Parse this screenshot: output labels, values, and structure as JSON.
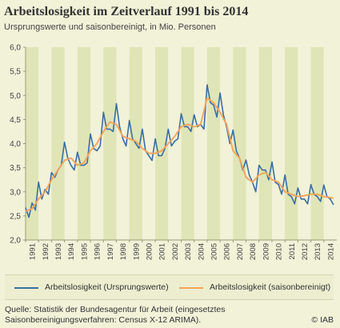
{
  "title": "Arbeitslosigkeit im Zeitverlauf 1991 bis 2014",
  "subtitle": "Ursprungswerte und saisonbereinigt, in Mio. Personen",
  "source_lines": [
    "Quelle: Statistik der Bundesagentur für Arbeit (eingesetztes",
    "Saisonbereinigungsverfahren: Census X-12 ARIMA)."
  ],
  "copyright": "© IAB",
  "colors": {
    "background": "#f1f2d8",
    "band_light": "#f1f2d8",
    "band_dark": "#dfe5b6",
    "raw_series": "#3a6ea5",
    "seasonal_series": "#f5a25a"
  },
  "chart_data": {
    "type": "line",
    "ylim": [
      2.0,
      6.0
    ],
    "yticks": [
      "2,0",
      "2,5",
      "3,0",
      "3,5",
      "4,0",
      "4,5",
      "5,0",
      "5,5",
      "6,0"
    ],
    "xlim": [
      1991.0,
      2014.75
    ],
    "xticks": [
      "1991",
      "1992",
      "1993",
      "1994",
      "1995",
      "1996",
      "1997",
      "1998",
      "1999",
      "2000",
      "2001",
      "2002",
      "2003",
      "2004",
      "2005",
      "2006",
      "2007",
      "2008",
      "2009",
      "2010",
      "2011",
      "2012",
      "2013",
      "2014"
    ],
    "grid": "alternating vertical year bands",
    "legend_position": "bottom",
    "series": [
      {
        "name": "Arbeitslosigkeit (Ursprungswerte)",
        "color": "#3a6ea5",
        "data": [
          [
            1991.0,
            2.67
          ],
          [
            1991.25,
            2.47
          ],
          [
            1991.5,
            2.77
          ],
          [
            1991.75,
            2.62
          ],
          [
            1992.0,
            3.2
          ],
          [
            1992.25,
            2.85
          ],
          [
            1992.5,
            3.05
          ],
          [
            1992.75,
            2.95
          ],
          [
            1993.0,
            3.4
          ],
          [
            1993.25,
            3.3
          ],
          [
            1993.5,
            3.45
          ],
          [
            1993.75,
            3.55
          ],
          [
            1994.0,
            4.03
          ],
          [
            1994.25,
            3.7
          ],
          [
            1994.5,
            3.55
          ],
          [
            1994.75,
            3.45
          ],
          [
            1995.0,
            3.82
          ],
          [
            1995.25,
            3.55
          ],
          [
            1995.5,
            3.55
          ],
          [
            1995.75,
            3.6
          ],
          [
            1996.0,
            4.2
          ],
          [
            1996.25,
            3.9
          ],
          [
            1996.5,
            3.85
          ],
          [
            1996.75,
            3.95
          ],
          [
            1997.0,
            4.65
          ],
          [
            1997.25,
            4.3
          ],
          [
            1997.5,
            4.3
          ],
          [
            1997.75,
            4.25
          ],
          [
            1998.0,
            4.83
          ],
          [
            1998.25,
            4.35
          ],
          [
            1998.5,
            4.1
          ],
          [
            1998.75,
            3.95
          ],
          [
            1999.0,
            4.48
          ],
          [
            1999.25,
            4.1
          ],
          [
            1999.5,
            4.0
          ],
          [
            1999.75,
            3.9
          ],
          [
            2000.0,
            4.3
          ],
          [
            2000.25,
            3.85
          ],
          [
            2000.5,
            3.75
          ],
          [
            2000.75,
            3.65
          ],
          [
            2001.0,
            4.1
          ],
          [
            2001.25,
            3.75
          ],
          [
            2001.5,
            3.75
          ],
          [
            2001.75,
            3.9
          ],
          [
            2002.0,
            4.3
          ],
          [
            2002.25,
            3.95
          ],
          [
            2002.5,
            4.05
          ],
          [
            2002.75,
            4.1
          ],
          [
            2003.0,
            4.62
          ],
          [
            2003.25,
            4.35
          ],
          [
            2003.5,
            4.35
          ],
          [
            2003.75,
            4.25
          ],
          [
            2004.0,
            4.6
          ],
          [
            2004.25,
            4.35
          ],
          [
            2004.5,
            4.4
          ],
          [
            2004.75,
            4.3
          ],
          [
            2005.0,
            5.22
          ],
          [
            2005.25,
            4.85
          ],
          [
            2005.5,
            4.8
          ],
          [
            2005.75,
            4.55
          ],
          [
            2006.0,
            5.05
          ],
          [
            2006.25,
            4.6
          ],
          [
            2006.5,
            4.35
          ],
          [
            2006.75,
            4.0
          ],
          [
            2007.0,
            4.28
          ],
          [
            2007.25,
            3.85
          ],
          [
            2007.5,
            3.7
          ],
          [
            2007.75,
            3.45
          ],
          [
            2008.0,
            3.66
          ],
          [
            2008.25,
            3.35
          ],
          [
            2008.5,
            3.2
          ],
          [
            2008.75,
            3.0
          ],
          [
            2009.0,
            3.55
          ],
          [
            2009.25,
            3.45
          ],
          [
            2009.5,
            3.45
          ],
          [
            2009.75,
            3.25
          ],
          [
            2010.0,
            3.62
          ],
          [
            2010.25,
            3.2
          ],
          [
            2010.5,
            3.15
          ],
          [
            2010.75,
            2.95
          ],
          [
            2011.0,
            3.35
          ],
          [
            2011.25,
            2.95
          ],
          [
            2011.5,
            2.9
          ],
          [
            2011.75,
            2.75
          ],
          [
            2012.0,
            3.08
          ],
          [
            2012.25,
            2.85
          ],
          [
            2012.5,
            2.85
          ],
          [
            2012.75,
            2.75
          ],
          [
            2013.0,
            3.15
          ],
          [
            2013.25,
            2.95
          ],
          [
            2013.5,
            2.9
          ],
          [
            2013.75,
            2.8
          ],
          [
            2014.0,
            3.14
          ],
          [
            2014.25,
            2.9
          ],
          [
            2014.5,
            2.85
          ],
          [
            2014.75,
            2.73
          ]
        ]
      },
      {
        "name": "Arbeitslosigkeit (saisonbereinigt)",
        "color": "#f5a25a",
        "data": [
          [
            1991.0,
            2.6
          ],
          [
            1991.5,
            2.65
          ],
          [
            1992.0,
            2.85
          ],
          [
            1992.5,
            3.0
          ],
          [
            1993.0,
            3.25
          ],
          [
            1993.5,
            3.45
          ],
          [
            1994.0,
            3.65
          ],
          [
            1994.5,
            3.7
          ],
          [
            1995.0,
            3.55
          ],
          [
            1995.5,
            3.6
          ],
          [
            1996.0,
            3.85
          ],
          [
            1996.5,
            4.0
          ],
          [
            1997.0,
            4.25
          ],
          [
            1997.5,
            4.45
          ],
          [
            1998.0,
            4.4
          ],
          [
            1998.5,
            4.15
          ],
          [
            1999.0,
            4.1
          ],
          [
            1999.5,
            4.05
          ],
          [
            2000.0,
            3.9
          ],
          [
            2000.5,
            3.8
          ],
          [
            2001.0,
            3.8
          ],
          [
            2001.5,
            3.85
          ],
          [
            2002.0,
            4.0
          ],
          [
            2002.5,
            4.15
          ],
          [
            2003.0,
            4.35
          ],
          [
            2003.5,
            4.4
          ],
          [
            2004.0,
            4.35
          ],
          [
            2004.5,
            4.4
          ],
          [
            2005.0,
            4.95
          ],
          [
            2005.5,
            4.85
          ],
          [
            2006.0,
            4.65
          ],
          [
            2006.5,
            4.4
          ],
          [
            2007.0,
            3.85
          ],
          [
            2007.5,
            3.7
          ],
          [
            2008.0,
            3.3
          ],
          [
            2008.5,
            3.2
          ],
          [
            2009.0,
            3.35
          ],
          [
            2009.5,
            3.4
          ],
          [
            2010.0,
            3.25
          ],
          [
            2010.5,
            3.2
          ],
          [
            2011.0,
            3.0
          ],
          [
            2011.5,
            2.95
          ],
          [
            2012.0,
            2.9
          ],
          [
            2012.5,
            2.92
          ],
          [
            2013.0,
            2.95
          ],
          [
            2013.5,
            2.95
          ],
          [
            2014.0,
            2.9
          ],
          [
            2014.5,
            2.88
          ],
          [
            2014.75,
            2.87
          ]
        ]
      }
    ]
  }
}
